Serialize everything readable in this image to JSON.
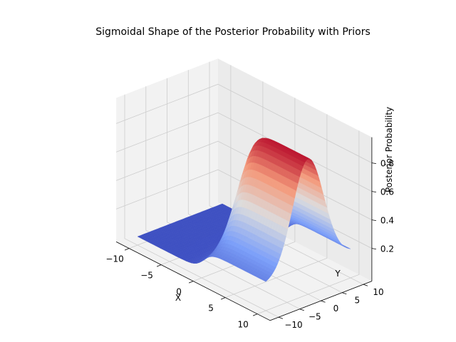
{
  "chart_data": {
    "type": "surface",
    "title": "Sigmoidal Shape of the Posterior Probability with Priors",
    "xlabel": "X",
    "ylabel": "Y",
    "zlabel": "Posterior Probability",
    "xlim": [
      -10,
      10
    ],
    "ylim": [
      -10,
      10
    ],
    "zlim": [
      0.02,
      0.95
    ],
    "x_ticks": [
      -10,
      -5,
      0,
      5,
      10
    ],
    "y_ticks": [
      -10,
      -5,
      0,
      5,
      10
    ],
    "z_ticks": [
      0.2,
      0.4,
      0.6,
      0.8
    ],
    "x_tick_labels": [
      "−10",
      "−5",
      "0",
      "5",
      "10"
    ],
    "y_tick_labels": [
      "−10",
      "−5",
      "0",
      "5",
      "10"
    ],
    "z_tick_labels": [
      "0.2",
      "0.4",
      "0.6",
      "0.8"
    ],
    "colormap": "coolwarm",
    "colors": {
      "low": "#3b4cc0",
      "mid": "#dddddd",
      "high": "#b40426"
    },
    "surface_shape": "sigmoid rising along x, multiplied by a bell-shaped profile along y",
    "samples": [
      {
        "x": -10,
        "y": 0,
        "z": 0.03
      },
      {
        "x": -5,
        "y": 0,
        "z": 0.04
      },
      {
        "x": 0,
        "y": 0,
        "z": 0.45
      },
      {
        "x": 5,
        "y": 0,
        "z": 0.9
      },
      {
        "x": 10,
        "y": 0,
        "z": 0.92
      },
      {
        "x": 10,
        "y": -10,
        "z": 0.15
      },
      {
        "x": 10,
        "y": 10,
        "z": 0.15
      }
    ],
    "grid": true
  }
}
